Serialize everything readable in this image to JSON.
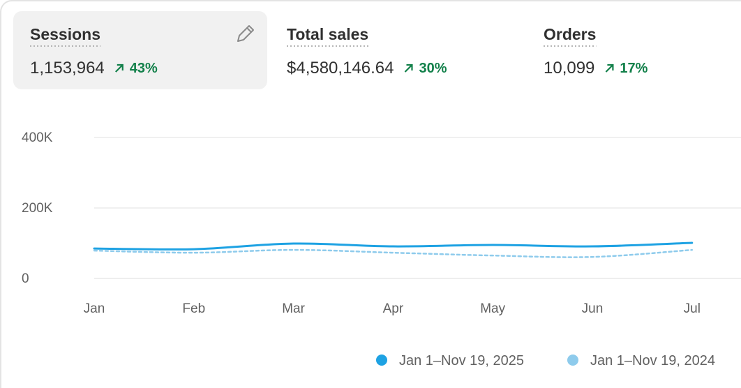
{
  "metrics": [
    {
      "title": "Sessions",
      "value": "1,153,964",
      "change": "43%"
    },
    {
      "title": "Total sales",
      "value": "$4,580,146.64",
      "change": "30%"
    },
    {
      "title": "Orders",
      "value": "10,099",
      "change": "17%"
    }
  ],
  "chart_data": {
    "type": "line",
    "categories": [
      "Jan",
      "Feb",
      "Mar",
      "Apr",
      "May",
      "Jun",
      "Jul"
    ],
    "series": [
      {
        "name": "Jan 1–Nov 19, 2025",
        "color": "#1ea2e3",
        "values": [
          85000,
          83000,
          99000,
          91000,
          95000,
          91000,
          101000
        ]
      },
      {
        "name": "Jan 1–Nov 19, 2024",
        "color": "#8ecbec",
        "values": [
          79000,
          73000,
          81000,
          73000,
          65000,
          61000,
          81000
        ]
      }
    ],
    "ylim": [
      0,
      400000
    ],
    "yticks": [
      0,
      {
        "value": 200000,
        "label": "200K"
      },
      {
        "value": 400000,
        "label": "400K"
      }
    ],
    "grid": true
  }
}
